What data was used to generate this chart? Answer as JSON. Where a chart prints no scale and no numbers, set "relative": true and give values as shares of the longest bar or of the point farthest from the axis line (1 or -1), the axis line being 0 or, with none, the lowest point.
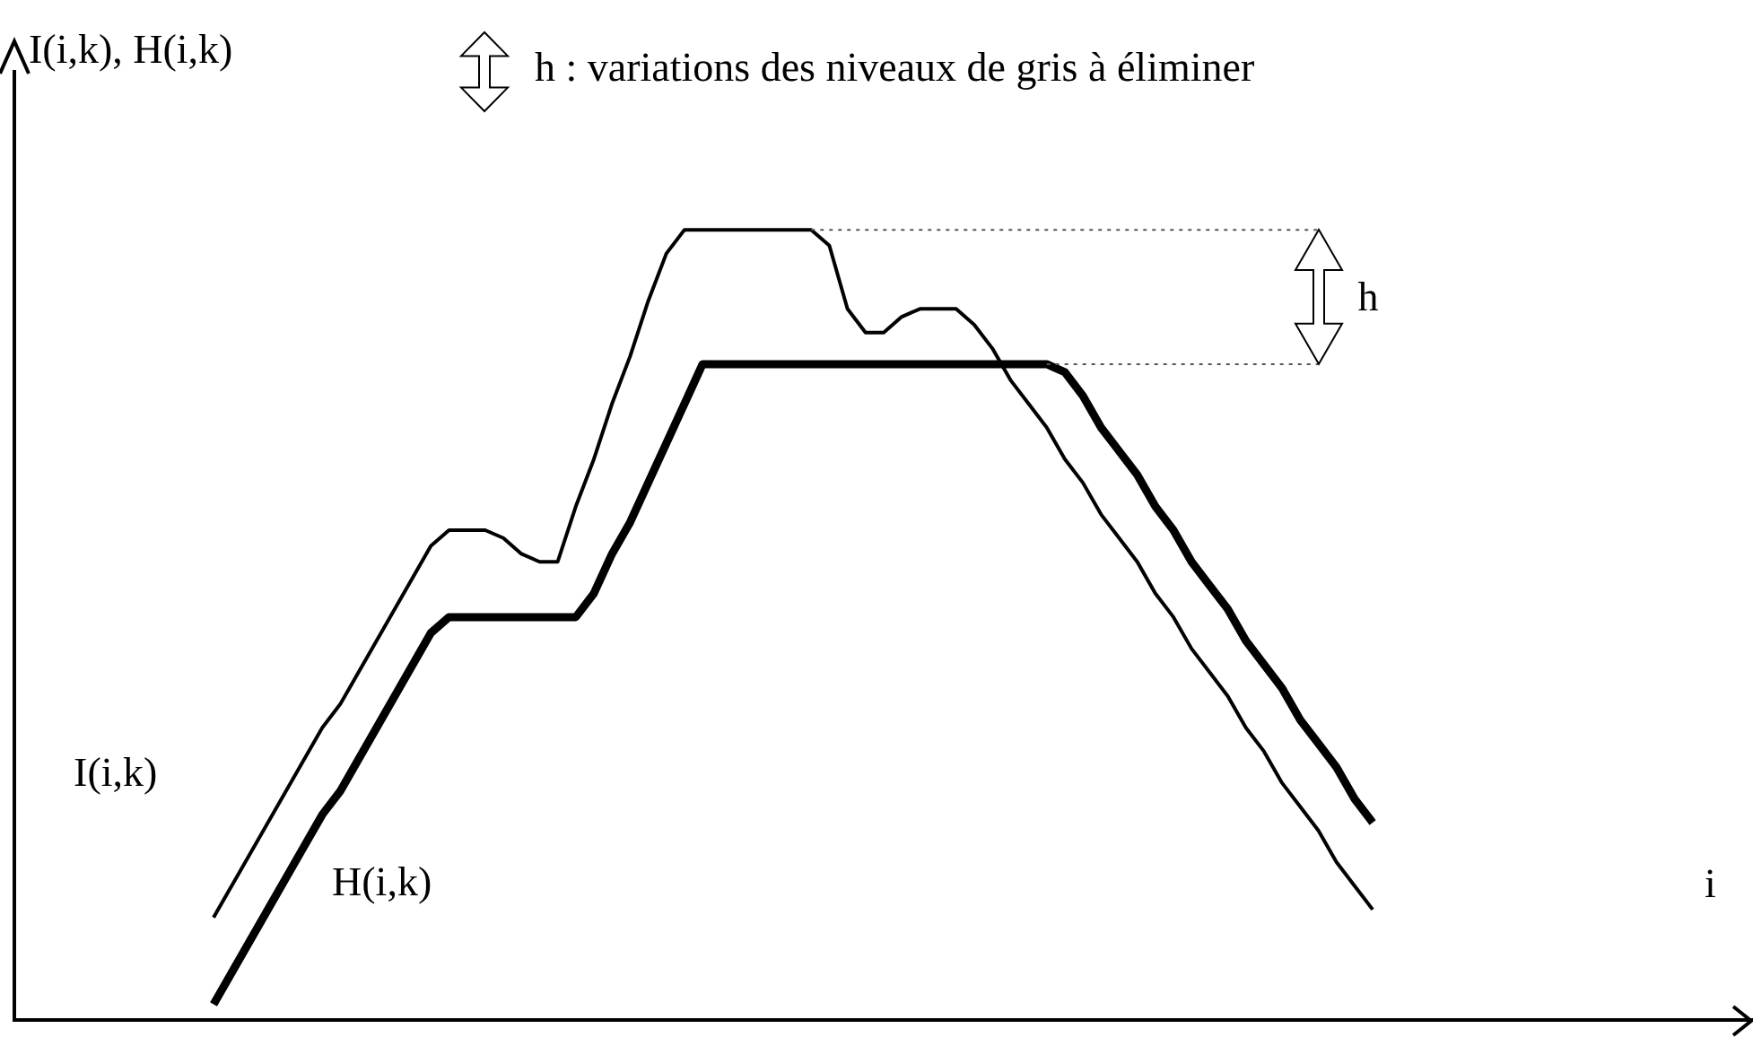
{
  "chart_data": {
    "type": "line",
    "relative": true,
    "xlabel": "i",
    "ylabel": "I(i,k), H(i,k)",
    "grid": false,
    "legend": false,
    "marker": "none",
    "line_style": "solid",
    "categories": [
      null,
      null,
      null,
      null,
      null,
      null,
      null,
      null,
      null,
      null,
      null,
      null,
      null,
      null,
      null,
      null,
      null,
      null,
      null,
      null,
      null,
      null,
      null,
      null,
      null,
      null,
      null,
      null,
      null,
      null,
      null,
      null,
      null,
      null,
      null,
      null,
      null,
      null,
      null,
      null,
      null,
      null,
      null,
      null,
      null,
      null,
      null,
      null,
      null,
      null,
      null,
      null,
      null,
      null,
      null,
      null,
      null,
      null,
      null,
      null,
      null,
      null,
      null,
      null,
      null,
      null,
      null,
      null,
      null,
      null,
      null,
      null,
      null,
      null,
      null,
      null,
      null,
      null,
      null,
      null,
      null,
      null,
      null,
      null,
      null,
      null,
      null,
      null,
      null,
      null,
      null,
      null,
      null,
      null,
      null,
      null,
      null
    ],
    "series": [
      {
        "name": "I(i,k)",
        "color": "#000000",
        "values": [
          null,
          null,
          null,
          null,
          null,
          null,
          null,
          null,
          null,
          null,
          null,
          0.13,
          0.17,
          0.21,
          0.25,
          0.29,
          0.33,
          0.37,
          0.4,
          0.44,
          0.48,
          0.52,
          0.56,
          0.6,
          0.62,
          0.62,
          0.62,
          0.61,
          0.59,
          0.58,
          0.58,
          0.65,
          0.71,
          0.78,
          0.84,
          0.91,
          0.97,
          1,
          1,
          1,
          1,
          1,
          1,
          1,
          1,
          0.98,
          0.9,
          0.87,
          0.87,
          0.89,
          0.9,
          0.9,
          0.9,
          0.88,
          0.85,
          0.81,
          0.78,
          0.75,
          0.71,
          0.68,
          0.64,
          0.61,
          0.58,
          0.54,
          0.51,
          0.47,
          0.44,
          0.41,
          0.37,
          0.34,
          0.3,
          0.27,
          0.24,
          0.2,
          0.17,
          0.14,
          null,
          null,
          null,
          null,
          null,
          null,
          null,
          null,
          null,
          null,
          null,
          null,
          null,
          null,
          null,
          null,
          null,
          null,
          null,
          null,
          null
        ]
      },
      {
        "name": "H(i,k)",
        "color": "#000000",
        "values": [
          null,
          null,
          null,
          null,
          null,
          null,
          null,
          null,
          null,
          null,
          null,
          0.02,
          0.06,
          0.1,
          0.14,
          0.18,
          0.22,
          0.26,
          0.29,
          0.33,
          0.37,
          0.41,
          0.45,
          0.49,
          0.51,
          0.51,
          0.51,
          0.51,
          0.51,
          0.51,
          0.51,
          0.51,
          0.54,
          0.59,
          0.63,
          0.68,
          0.73,
          0.78,
          0.83,
          0.83,
          0.83,
          0.83,
          0.83,
          0.83,
          0.83,
          0.83,
          0.83,
          0.83,
          0.83,
          0.83,
          0.83,
          0.83,
          0.83,
          0.83,
          0.83,
          0.83,
          0.83,
          0.83,
          0.82,
          0.79,
          0.75,
          0.72,
          0.69,
          0.65,
          0.62,
          0.58,
          0.55,
          0.52,
          0.48,
          0.45,
          0.42,
          0.38,
          0.35,
          0.32,
          0.28,
          0.25,
          null,
          null,
          null,
          null,
          null,
          null,
          null,
          null,
          null,
          null,
          null,
          null,
          null,
          null,
          null,
          null,
          null,
          null,
          null,
          null,
          null
        ]
      }
    ],
    "ref_lines": [
      {
        "axis": "y",
        "value": 1,
        "line_style": "dotted",
        "color": "#555555"
      },
      {
        "axis": "y",
        "value": 0.83,
        "line_style": "dotted",
        "color": "#555555"
      }
    ],
    "annotations": [
      "h : variations des niveaux de gris à éliminer",
      "h"
    ]
  }
}
